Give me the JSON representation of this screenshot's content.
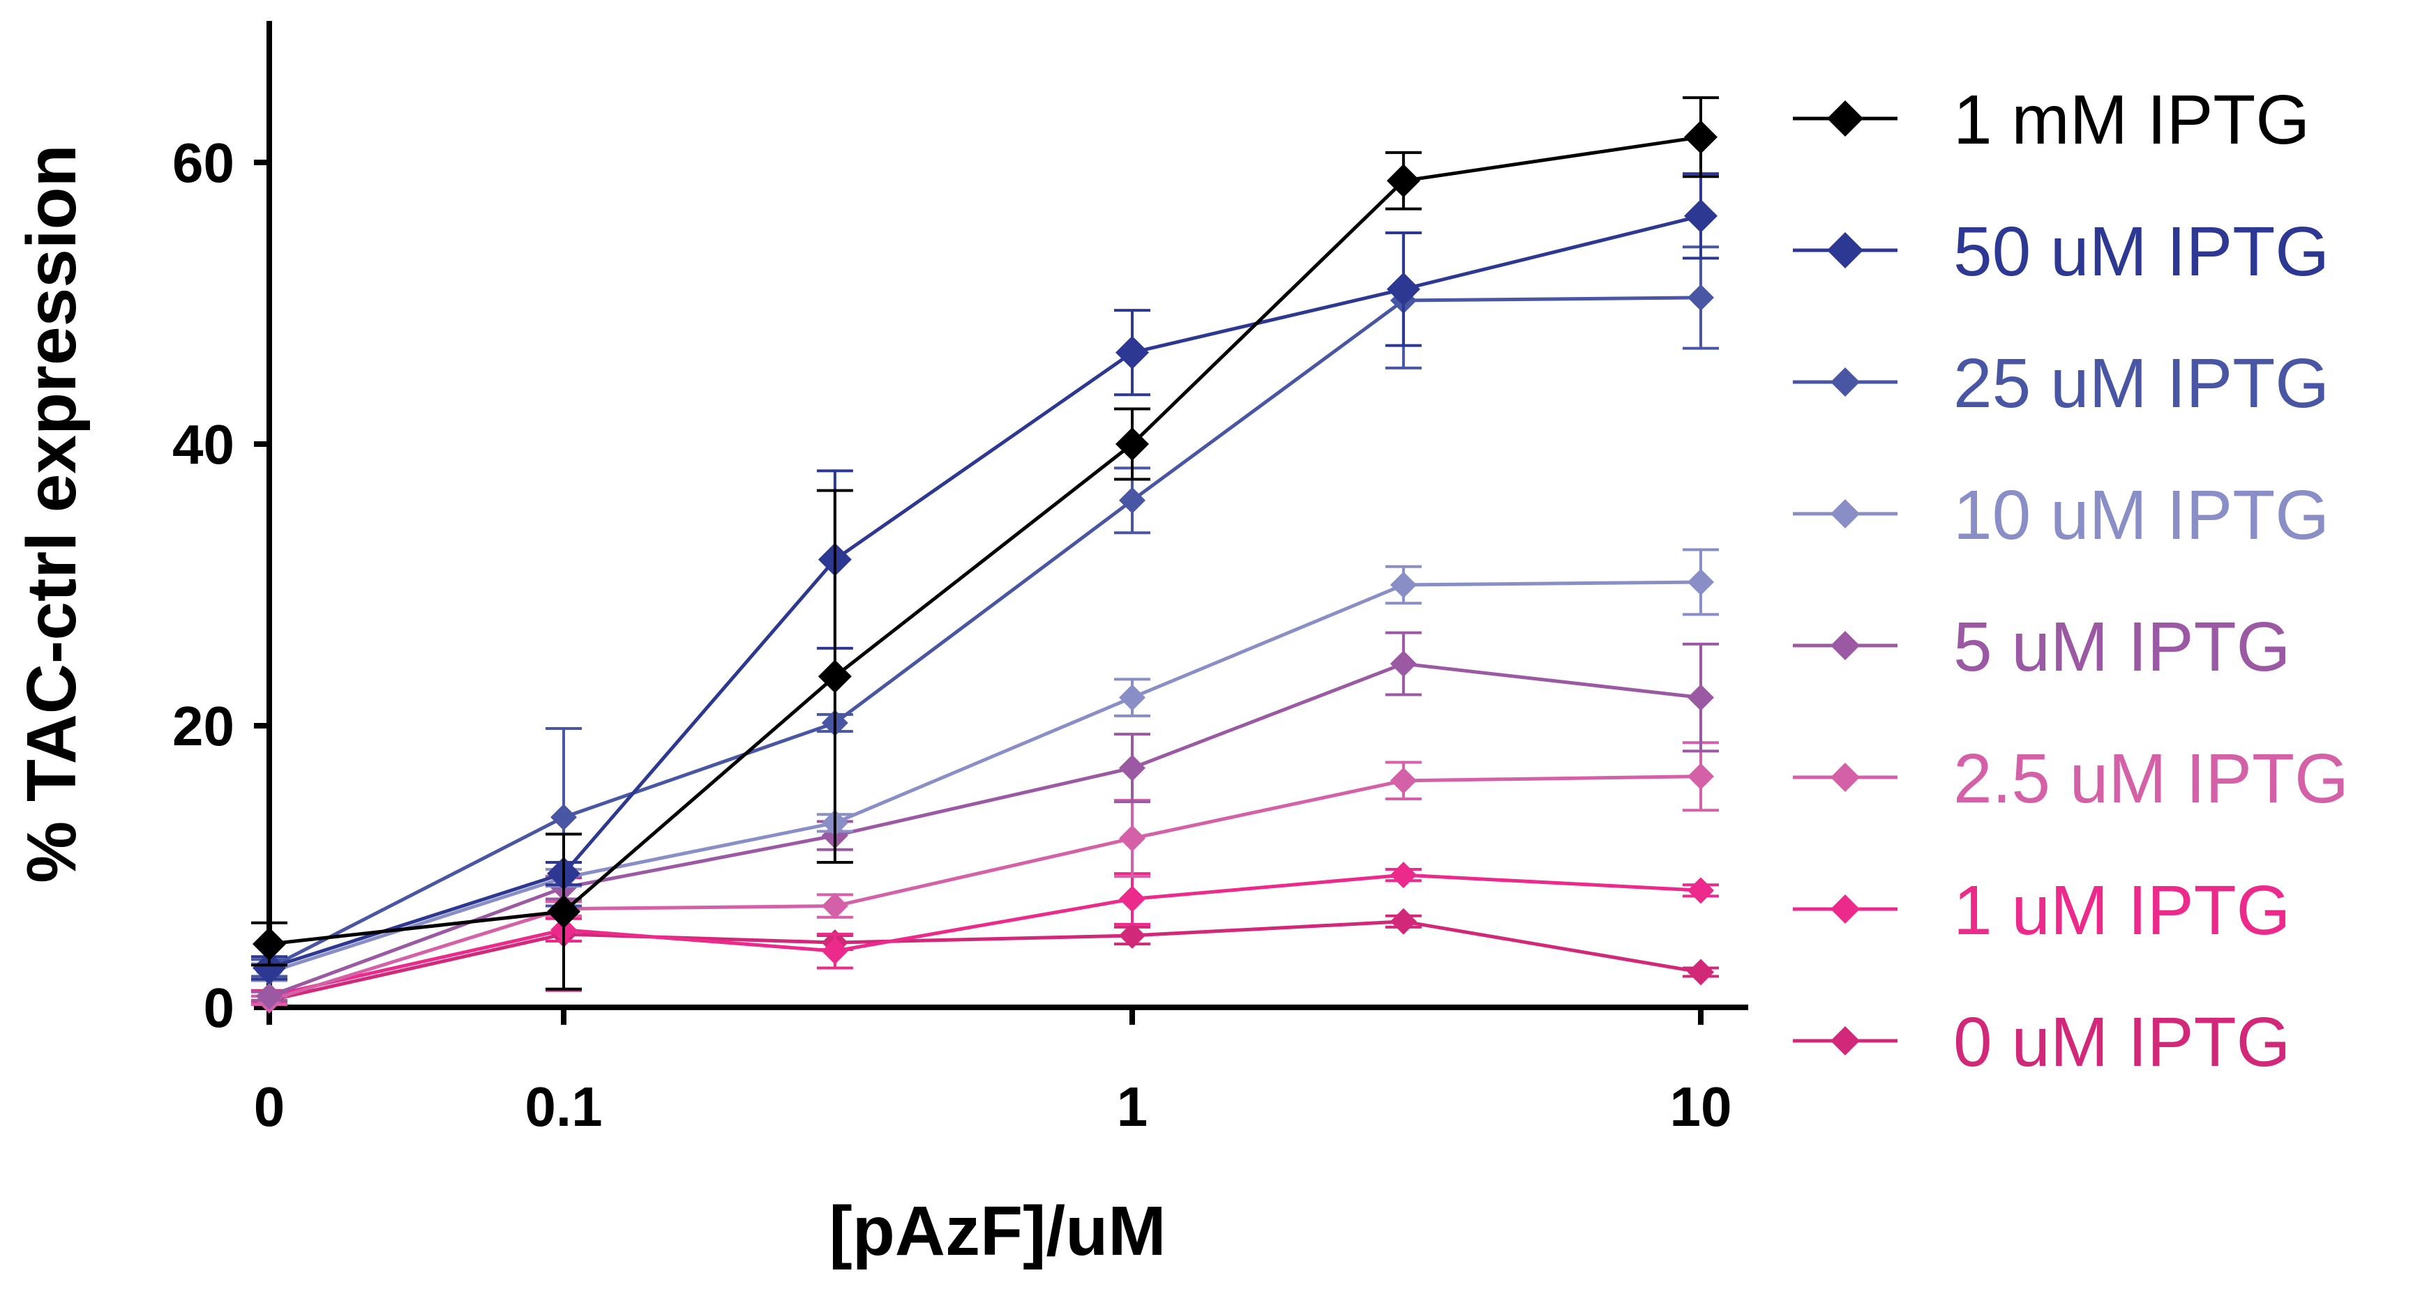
{
  "chart_data": {
    "type": "line",
    "title": "",
    "xlabel": "[pAzF]/uM",
    "ylabel": "% TAC-ctrl expression",
    "x_scale": "log with zero break",
    "x_ticks": [
      "0",
      "0.1",
      "1",
      "10"
    ],
    "y_ticks": [
      "0",
      "20",
      "40",
      "60"
    ],
    "ylim": [
      0,
      70
    ],
    "legend_position": "right",
    "grid": false,
    "x": [
      0,
      0.1,
      0.3,
      1,
      3,
      10
    ],
    "series": [
      {
        "name": "1 mM IPTG",
        "color": "#000000",
        "marker": "diamond",
        "values": [
          4.5,
          6.8,
          23.5,
          40.0,
          58.7,
          61.8
        ],
        "errors": [
          1.5,
          5.5,
          13.2,
          2.5,
          2.0,
          2.8
        ]
      },
      {
        "name": "50 uM IPTG",
        "color": "#2c3891",
        "marker": "diamond",
        "values": [
          2.8,
          9.5,
          31.8,
          46.5,
          51.0,
          56.2
        ],
        "errors": [
          0.8,
          0.8,
          6.3,
          3.0,
          4.0,
          3.0
        ]
      },
      {
        "name": "25 uM IPTG",
        "color": "#4856a4",
        "marker": "diamond",
        "values": [
          2.8,
          13.5,
          20.2,
          36.0,
          50.2,
          50.4
        ],
        "errors": [
          0.6,
          6.3,
          0.6,
          2.3,
          4.8,
          3.6
        ]
      },
      {
        "name": "10 uM IPTG",
        "color": "#8a8ec7",
        "marker": "diamond",
        "values": [
          2.5,
          9.2,
          13.1,
          22.0,
          30.0,
          30.2
        ],
        "errors": [
          0.6,
          0.6,
          0.6,
          1.3,
          1.3,
          2.3
        ]
      },
      {
        "name": "5 uM IPTG",
        "color": "#9b59a3",
        "marker": "diamond",
        "values": [
          0.8,
          8.5,
          12.2,
          17.0,
          24.4,
          22.0
        ],
        "errors": [
          0.3,
          0.8,
          1.0,
          2.4,
          2.2,
          3.8
        ]
      },
      {
        "name": "2.5 uM IPTG",
        "color": "#d461a8",
        "marker": "diamond",
        "values": [
          0.5,
          7.0,
          7.2,
          12.0,
          16.1,
          16.4
        ],
        "errors": [
          0.3,
          0.5,
          0.8,
          2.7,
          1.3,
          2.4
        ]
      },
      {
        "name": "1 uM IPTG",
        "color": "#ec2a8b",
        "marker": "diamond",
        "values": [
          0.8,
          5.5,
          4.0,
          7.7,
          9.4,
          8.3
        ],
        "errors": [
          0.4,
          0.8,
          1.2,
          1.8,
          0.4,
          0.4
        ]
      },
      {
        "name": "0 uM IPTG",
        "color": "#d2287a",
        "marker": "diamond",
        "values": [
          0.5,
          5.2,
          4.6,
          5.1,
          6.1,
          2.5
        ],
        "errors": [
          0.3,
          4.0,
          0.5,
          0.6,
          0.4,
          0.3
        ]
      }
    ]
  }
}
